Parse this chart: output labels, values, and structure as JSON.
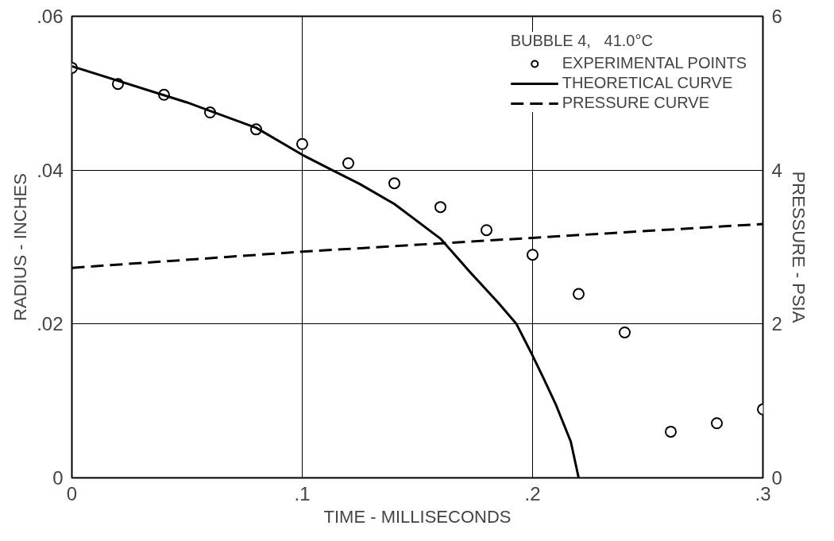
{
  "chart_data": {
    "type": "line",
    "xlabel": "TIME - MILLISECONDS",
    "ylabel": "RADIUS - INCHES",
    "y2label": "PRESSURE - PSIA",
    "legend_title": "BUBBLE 4,   41.0°C",
    "xlim": [
      0,
      0.3
    ],
    "xticks": [
      {
        "value": 0,
        "label": "0"
      },
      {
        "value": 0.1,
        "label": ".1"
      },
      {
        "value": 0.2,
        "label": ".2"
      },
      {
        "value": 0.3,
        "label": ".3"
      }
    ],
    "ylim": [
      0,
      0.06
    ],
    "yticks": [
      {
        "value": 0,
        "label": "0"
      },
      {
        "value": 0.02,
        "label": ".02"
      },
      {
        "value": 0.04,
        "label": ".04"
      },
      {
        "value": 0.06,
        "label": ".06"
      }
    ],
    "y2lim": [
      0,
      6
    ],
    "y2ticks": [
      0,
      2,
      4,
      6
    ],
    "grid": true,
    "legend": "top right",
    "series": [
      {
        "name": "EXPERIMENTAL POINTS",
        "type": "scatter",
        "marker": "circle",
        "color": "#000000",
        "x": [
          0,
          0.02,
          0.04,
          0.06,
          0.08,
          0.1,
          0.12,
          0.14,
          0.16,
          0.18,
          0.2,
          0.22,
          0.24,
          0.26,
          0.28,
          0.3
        ],
        "values": [
          0.0533,
          0.0512,
          0.0498,
          0.0475,
          0.0453,
          0.0434,
          0.0409,
          0.0383,
          0.0352,
          0.0322,
          0.029,
          0.0239,
          0.0189,
          0.006,
          0.0071,
          0.0089
        ]
      },
      {
        "name": "THEORETICAL CURVE",
        "line_style": "solid",
        "color": "#000000",
        "x": [
          0,
          0.05,
          0.08,
          0.1,
          0.113,
          0.125,
          0.14,
          0.16,
          0.173,
          0.185,
          0.193,
          0.2,
          0.205,
          0.21,
          0.2166,
          0.22
        ],
        "values": [
          0.0535,
          0.0488,
          0.0455,
          0.042,
          0.04,
          0.0382,
          0.0356,
          0.0311,
          0.0267,
          0.0228,
          0.02,
          0.0159,
          0.0128,
          0.0096,
          0.0047,
          0
        ]
      },
      {
        "name": "PRESSURE CURVE",
        "line_style": "dashed",
        "axis": "y2",
        "color": "#000000",
        "x": [
          0,
          0.1,
          0.2,
          0.3
        ],
        "values": [
          2.73,
          2.94,
          3.12,
          3.3
        ]
      }
    ]
  }
}
